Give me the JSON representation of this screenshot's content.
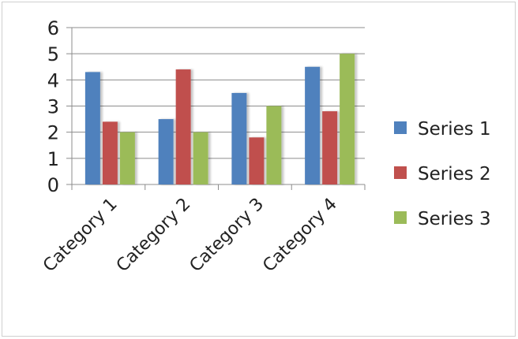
{
  "chart_data": {
    "type": "bar",
    "title": "",
    "xlabel": "",
    "ylabel": "",
    "categories": [
      "Category 1",
      "Category 2",
      "Category 3",
      "Category 4"
    ],
    "series": [
      {
        "name": "Series 1",
        "values": [
          4.3,
          2.5,
          3.5,
          4.5
        ],
        "color": "#4f81bd"
      },
      {
        "name": "Series 2",
        "values": [
          2.4,
          4.4,
          1.8,
          2.8
        ],
        "color": "#c0504d"
      },
      {
        "name": "Series 3",
        "values": [
          2,
          2,
          3,
          5
        ],
        "color": "#9bbb59"
      }
    ],
    "ylim": [
      0,
      6
    ],
    "yticks": [
      0,
      1,
      2,
      3,
      4,
      5,
      6
    ],
    "grid": true,
    "legend": "right"
  }
}
